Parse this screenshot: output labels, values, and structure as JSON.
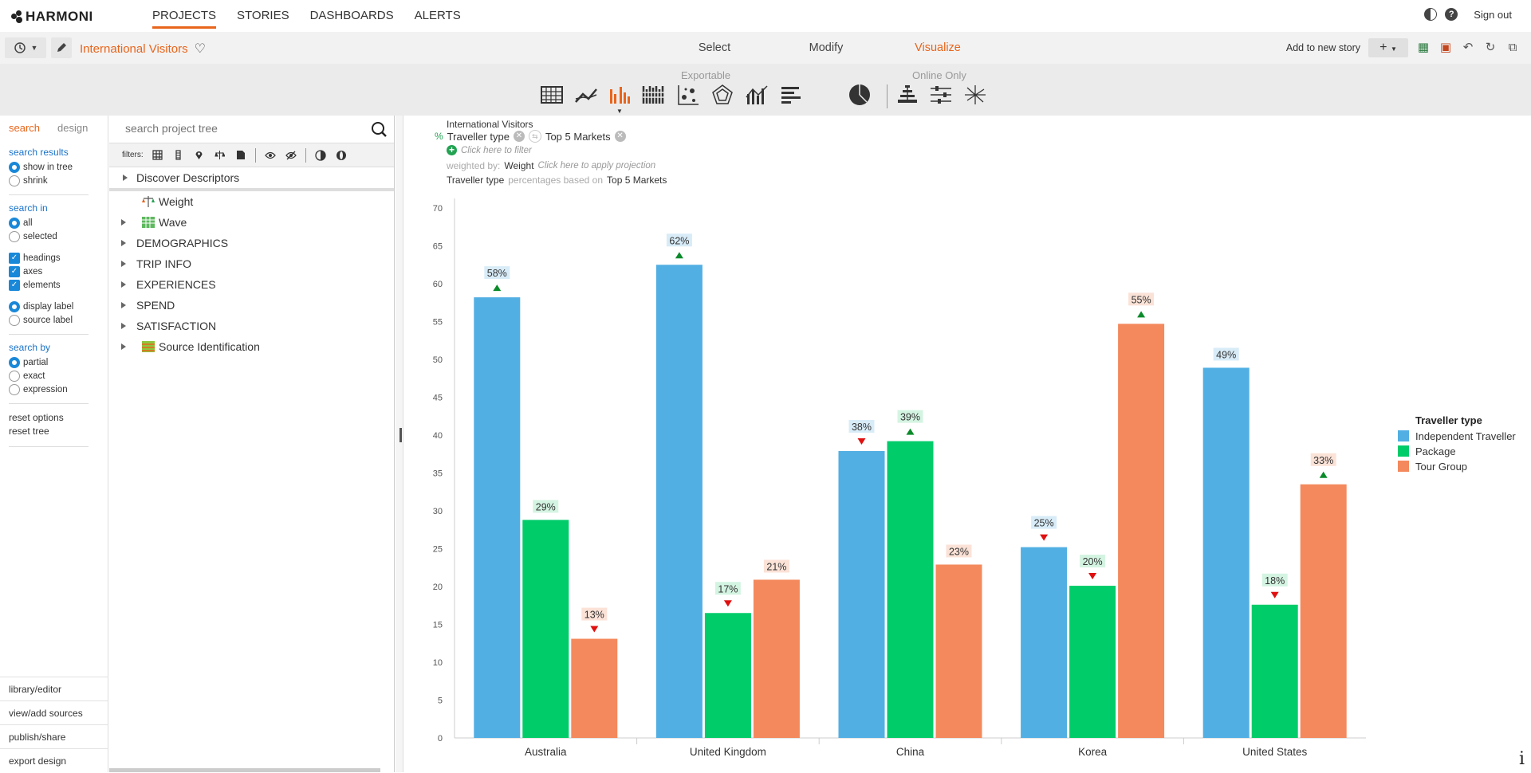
{
  "app": {
    "logo_text": "HARMONI"
  },
  "nav": {
    "items": [
      "PROJECTS",
      "STORIES",
      "DASHBOARDS",
      "ALERTS"
    ],
    "active": "PROJECTS"
  },
  "top_right": {
    "signout": "Sign out"
  },
  "toolbar": {
    "project_title": "International Visitors",
    "modes": [
      "Select",
      "Modify",
      "Visualize"
    ],
    "active_mode": "Visualize",
    "add_to_story": "Add to new story"
  },
  "typebar": {
    "exportable_label": "Exportable",
    "online_only_label": "Online Only"
  },
  "left_panel": {
    "tabs": [
      "search",
      "design"
    ],
    "active_tab": "search",
    "search_results": {
      "heading": "search results",
      "options": [
        "show in tree",
        "shrink"
      ],
      "selected": "show in tree"
    },
    "search_in": {
      "heading": "search in",
      "options": [
        "all",
        "selected"
      ],
      "selected": "all",
      "checks": [
        "headings",
        "axes",
        "elements"
      ],
      "label_options": [
        "display label",
        "source label"
      ],
      "label_selected": "display label"
    },
    "search_by": {
      "heading": "search by",
      "options": [
        "partial",
        "exact",
        "expression"
      ],
      "selected": "partial"
    },
    "links": [
      "reset options",
      "reset tree"
    ],
    "bottom": [
      "library/editor",
      "view/add sources",
      "publish/share",
      "export design"
    ]
  },
  "tree": {
    "search_placeholder": "search project tree",
    "filters_label": "filters:",
    "items": [
      {
        "label": "Discover Descriptors",
        "caret": true,
        "icon": ""
      },
      {
        "label": "Weight",
        "caret": false,
        "icon": "weight-icon"
      },
      {
        "label": "Wave",
        "caret": true,
        "icon": "wave-icon"
      },
      {
        "label": "DEMOGRAPHICS",
        "caret": true,
        "icon": ""
      },
      {
        "label": "TRIP INFO",
        "caret": true,
        "icon": ""
      },
      {
        "label": "EXPERIENCES",
        "caret": true,
        "icon": ""
      },
      {
        "label": "SPEND",
        "caret": true,
        "icon": ""
      },
      {
        "label": "SATISFACTION",
        "caret": true,
        "icon": ""
      },
      {
        "label": "Source Identification",
        "caret": true,
        "icon": "source-icon"
      }
    ]
  },
  "chart_header": {
    "dataset": "International Visitors",
    "pct_symbol": "%",
    "row_variable": "Traveller type",
    "column_variable": "Top 5 Markets",
    "filter_hint": "Click here to filter",
    "weighted_by_label": "weighted by:",
    "weight_name": "Weight",
    "projection_hint": "Click here to apply projection",
    "basis_var": "Traveller type",
    "basis_text": "percentages based on",
    "basis_target": "Top 5 Markets"
  },
  "chart_data": {
    "type": "bar",
    "categories": [
      "Australia",
      "United Kingdom",
      "China",
      "Korea",
      "United States"
    ],
    "series": [
      {
        "name": "Independent Traveller",
        "color": "#52afe3",
        "values": [
          58.2,
          62.5,
          37.9,
          25.2,
          48.9
        ],
        "labels": [
          "58%",
          "62%",
          "38%",
          "25%",
          "49%"
        ],
        "sig": [
          "up",
          "up",
          "down",
          "down",
          "none"
        ]
      },
      {
        "name": "Package",
        "color": "#00cc6a",
        "values": [
          28.8,
          16.5,
          39.2,
          20.1,
          17.6
        ],
        "labels": [
          "29%",
          "17%",
          "39%",
          "20%",
          "18%"
        ],
        "sig": [
          "none",
          "down",
          "up",
          "down",
          "down"
        ]
      },
      {
        "name": "Tour Group",
        "color": "#f4895d",
        "values": [
          13.1,
          20.9,
          22.9,
          54.7,
          33.5
        ],
        "labels": [
          "13%",
          "21%",
          "23%",
          "55%",
          "33%"
        ],
        "sig": [
          "down",
          "none",
          "none",
          "up",
          "up"
        ]
      }
    ],
    "legend_title": "Traveller type",
    "legend_position": "right",
    "ylim": [
      0,
      70
    ],
    "yticks": [
      0,
      5,
      10,
      15,
      20,
      25,
      30,
      35,
      40,
      45,
      50,
      55,
      60,
      65,
      70
    ],
    "grid": false
  }
}
